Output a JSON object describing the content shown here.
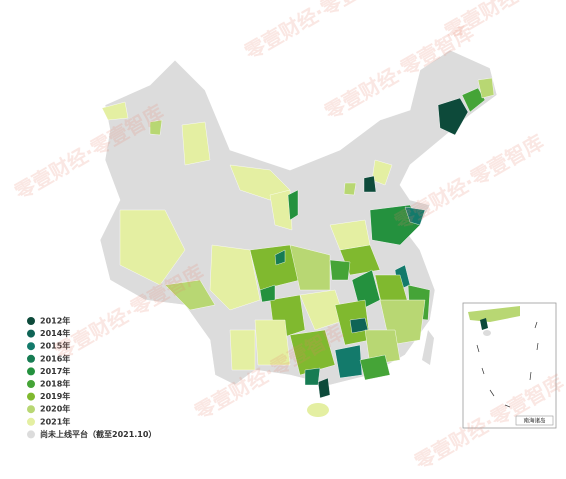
{
  "legend": {
    "items": [
      {
        "label": "2012年",
        "color": "#0d4a3a"
      },
      {
        "label": "2014年",
        "color": "#0f6456"
      },
      {
        "label": "2015年",
        "color": "#137a6b"
      },
      {
        "label": "2016年",
        "color": "#177c53"
      },
      {
        "label": "2017年",
        "color": "#24913e"
      },
      {
        "label": "2018年",
        "color": "#45a437"
      },
      {
        "label": "2019年",
        "color": "#80b92f"
      },
      {
        "label": "2020年",
        "color": "#b8d773"
      },
      {
        "label": "2021年",
        "color": "#e4efa2"
      },
      {
        "label": "尚未上线平台（截至2021.10）",
        "color": "#dcdcdc"
      }
    ]
  },
  "inset": {
    "label": "南海诸岛"
  },
  "watermark": "零壹财经·零壹智库"
}
